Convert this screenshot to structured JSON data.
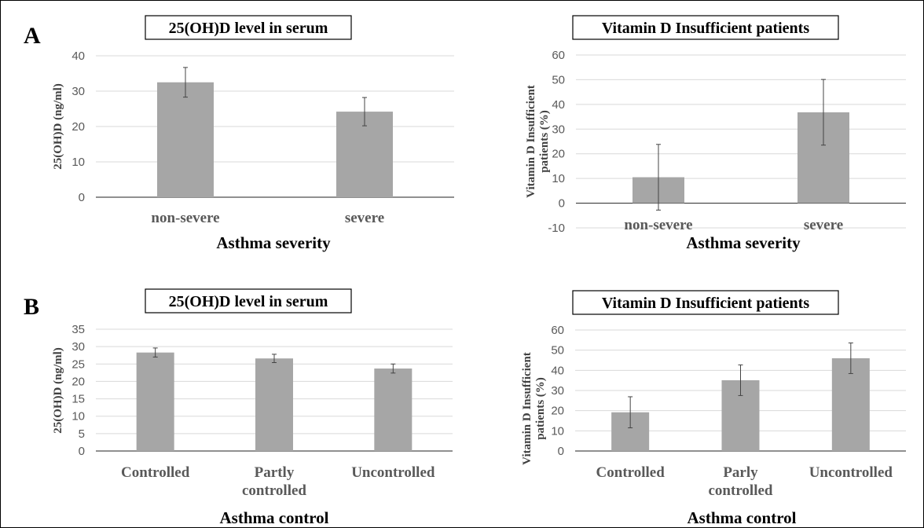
{
  "panels": [
    {
      "label": "A"
    },
    {
      "label": "B"
    }
  ],
  "chart_data": [
    {
      "type": "bar",
      "title": "25(OH)D level in serum",
      "xlabel": "Asthma severity",
      "ylabel": "25(OH)D (ng/ml)",
      "categories": [
        "non-severe",
        "severe"
      ],
      "values": [
        32.5,
        24.2
      ],
      "error": [
        4.2,
        4.0
      ],
      "ylim": [
        0,
        40
      ],
      "yticks": [
        "0",
        "10",
        "20",
        "30",
        "40"
      ],
      "grid": true,
      "colors": {
        "bar": "#a6a6a6"
      }
    },
    {
      "type": "bar",
      "title": "Vitamin D Insufficient patients",
      "xlabel": "Asthma severity",
      "ylabel": "Vitamin D Insufficient patients (%)",
      "categories": [
        "non-severe",
        "severe"
      ],
      "values": [
        10.5,
        36.8
      ],
      "error": [
        13.3,
        13.3
      ],
      "ylim": [
        -10,
        60
      ],
      "yticks": [
        "-10",
        "0",
        "10",
        "20",
        "30",
        "40",
        "50",
        "60"
      ],
      "grid": true,
      "colors": {
        "bar": "#a6a6a6"
      }
    },
    {
      "type": "bar",
      "title": "25(OH)D level in serum",
      "xlabel": "Asthma control",
      "ylabel": "25(OH)D (ng/ml)",
      "categories": [
        "Controlled",
        "Partly controlled",
        "Uncontrolled"
      ],
      "values": [
        28.3,
        26.6,
        23.7
      ],
      "error": [
        1.3,
        1.2,
        1.3
      ],
      "ylim": [
        0,
        35
      ],
      "yticks": [
        "0",
        "5",
        "10",
        "15",
        "20",
        "25",
        "30",
        "35"
      ],
      "grid": true,
      "colors": {
        "bar": "#a6a6a6"
      }
    },
    {
      "type": "bar",
      "title": "Vitamin D Insufficient patients",
      "xlabel": "Asthma control",
      "ylabel": "Vitamin D Insufficient patients (%)",
      "categories": [
        "Controlled",
        "Parly controlled",
        "Uncontrolled"
      ],
      "values": [
        19.2,
        35.1,
        46.0
      ],
      "error": [
        7.7,
        7.6,
        7.6
      ],
      "ylim": [
        0,
        60
      ],
      "yticks": [
        "0",
        "10",
        "20",
        "30",
        "40",
        "50",
        "60"
      ],
      "grid": true,
      "colors": {
        "bar": "#a6a6a6"
      }
    }
  ]
}
